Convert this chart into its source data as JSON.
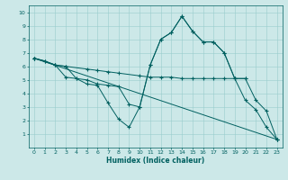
{
  "xlabel": "Humidex (Indice chaleur)",
  "xlim": [
    -0.5,
    23.5
  ],
  "ylim": [
    0,
    10.5
  ],
  "xticks": [
    0,
    1,
    2,
    3,
    4,
    5,
    6,
    7,
    8,
    9,
    10,
    11,
    12,
    13,
    14,
    15,
    16,
    17,
    18,
    19,
    20,
    21,
    22,
    23
  ],
  "yticks": [
    1,
    2,
    3,
    4,
    5,
    6,
    7,
    8,
    9,
    10
  ],
  "bg_color": "#cce8e8",
  "line_color": "#006060",
  "grid_color": "#99cccc",
  "lines": [
    {
      "x": [
        0,
        2,
        3,
        5,
        6,
        7,
        8,
        10,
        11,
        12,
        13,
        14,
        15,
        16,
        17,
        18,
        19,
        20
      ],
      "y": [
        6.6,
        6.1,
        6.0,
        5.8,
        5.7,
        5.6,
        5.5,
        5.3,
        5.2,
        5.2,
        5.2,
        5.1,
        5.1,
        5.1,
        5.1,
        5.1,
        5.1,
        5.1
      ]
    },
    {
      "x": [
        0,
        1,
        2,
        3,
        4,
        5,
        6,
        7,
        8,
        9,
        10,
        11,
        12,
        13,
        14,
        15,
        16,
        17,
        18,
        19,
        20,
        21,
        22,
        23
      ],
      "y": [
        6.6,
        6.4,
        6.1,
        6.0,
        5.1,
        5.0,
        4.7,
        4.6,
        4.5,
        3.2,
        3.0,
        6.1,
        8.0,
        8.5,
        9.7,
        8.6,
        7.8,
        7.8,
        7.0,
        5.1,
        5.1,
        3.5,
        2.7,
        0.6
      ]
    },
    {
      "x": [
        0,
        23
      ],
      "y": [
        6.6,
        0.6
      ]
    },
    {
      "x": [
        0,
        1,
        2,
        3,
        4,
        5,
        6,
        7,
        8,
        9,
        10,
        11,
        12,
        13,
        14,
        15,
        16,
        17,
        18,
        19,
        20,
        21,
        22,
        23
      ],
      "y": [
        6.6,
        6.4,
        6.1,
        5.2,
        5.1,
        4.7,
        4.6,
        3.3,
        2.1,
        1.5,
        3.0,
        6.1,
        8.0,
        8.5,
        9.7,
        8.6,
        7.8,
        7.8,
        7.0,
        5.1,
        3.5,
        2.8,
        1.5,
        0.6
      ]
    }
  ]
}
